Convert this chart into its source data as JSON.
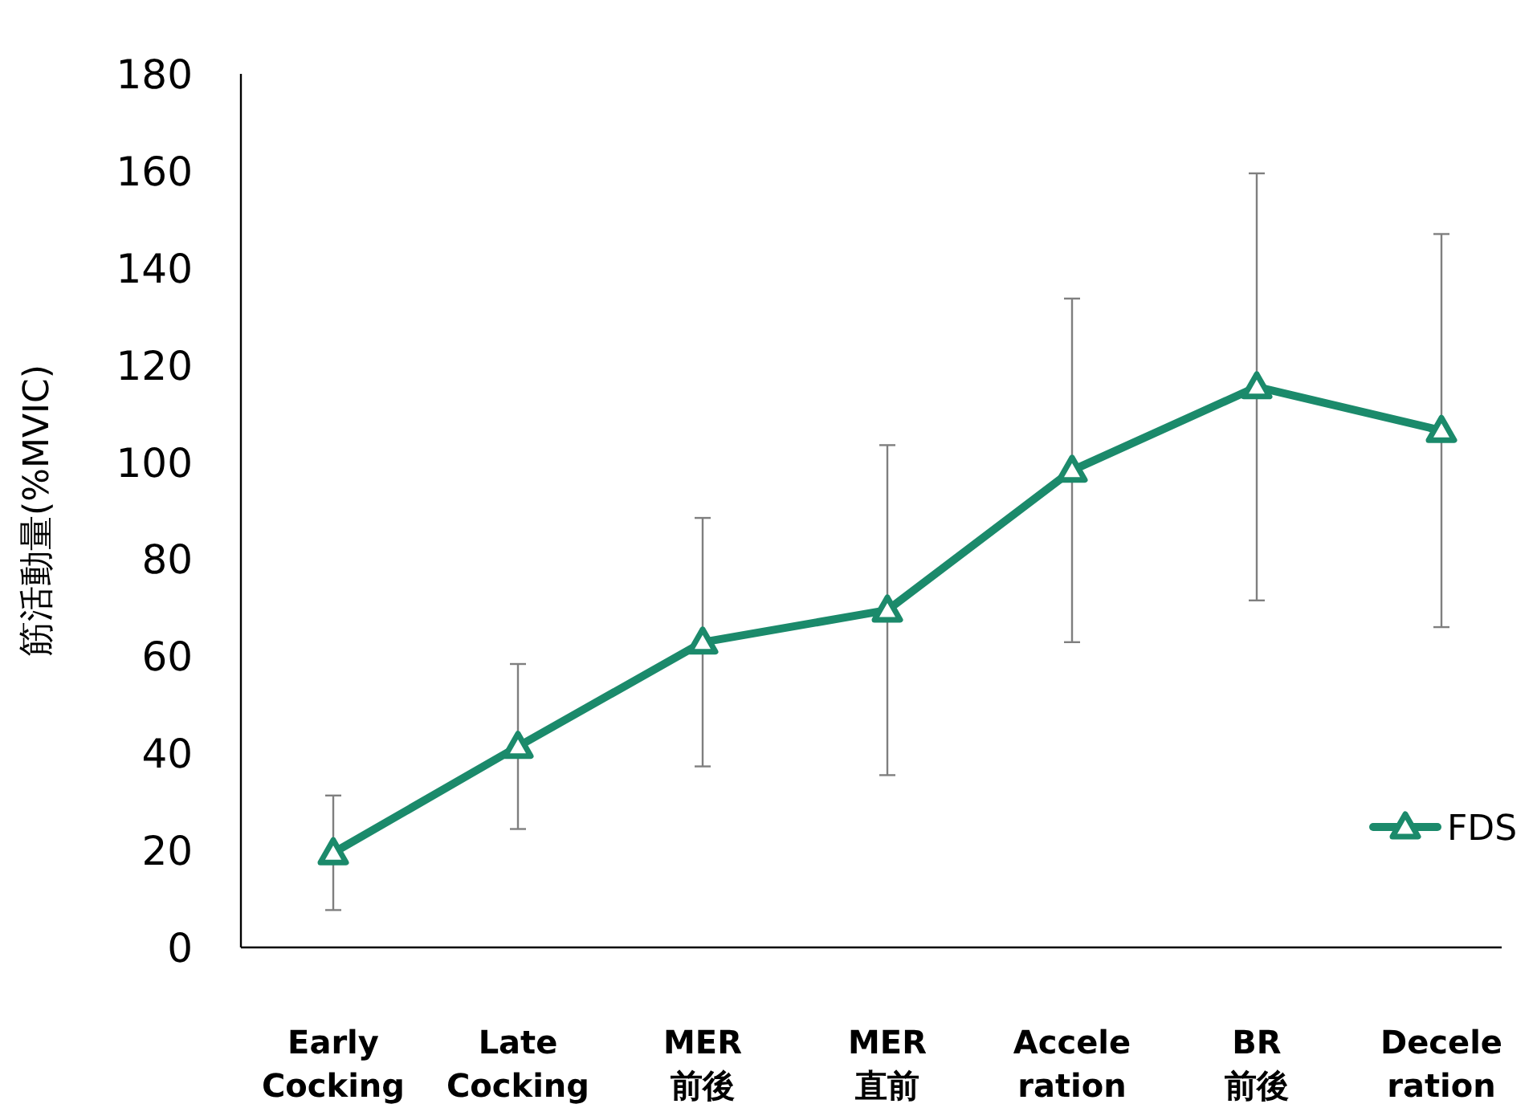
{
  "chart_data": {
    "type": "line",
    "ylabel": "筋活動量(%MVIC)",
    "categories": [
      "Early\nCocking",
      "Late\nCocking",
      "MER\n前後",
      "MER\n直前",
      "Accele\nration",
      "BR\n前後",
      "Decele\nration"
    ],
    "series": [
      {
        "name": "FDS",
        "color": "#1b8a6b",
        "values": [
          19.5,
          41.4,
          62.9,
          69.5,
          98.3,
          115.5,
          106.5
        ],
        "errors": [
          11.8,
          17,
          25.6,
          34,
          35.4,
          44,
          40.5
        ]
      }
    ],
    "ylim": [
      0,
      180
    ],
    "yticks": [
      0,
      20,
      40,
      60,
      80,
      100,
      120,
      140,
      160,
      180
    ],
    "marker": "triangle",
    "legend": "right"
  }
}
